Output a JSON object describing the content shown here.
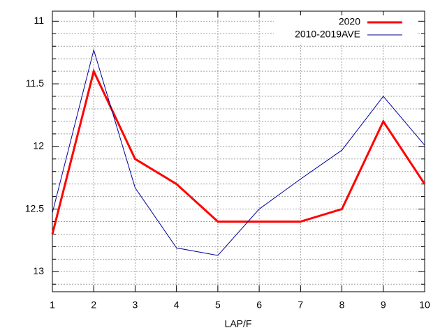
{
  "chart_data": {
    "type": "line",
    "x_label": "LAP/F",
    "x": [
      1,
      2,
      3,
      4,
      5,
      6,
      7,
      8,
      9,
      10
    ],
    "series": [
      {
        "name": "2020",
        "color": "#ff0000",
        "width": 3,
        "values": [
          12.7,
          11.4,
          12.1,
          12.3,
          12.6,
          12.6,
          12.6,
          12.5,
          11.8,
          12.3
        ]
      },
      {
        "name": "2010-2019AVE",
        "color": "#0000a0",
        "width": 1,
        "values": [
          12.53,
          11.23,
          12.33,
          12.81,
          12.87,
          12.5,
          12.26,
          12.03,
          11.6,
          11.99
        ]
      }
    ],
    "xlim": [
      1,
      10
    ],
    "xticks": [
      1,
      2,
      3,
      4,
      5,
      6,
      7,
      8,
      9,
      10
    ],
    "ylim": [
      13.16,
      10.92
    ],
    "yticks": [
      11,
      11.5,
      12,
      12.5,
      13
    ],
    "yminorticks": [
      11.1,
      11.2,
      11.3,
      11.4,
      11.6,
      11.7,
      11.8,
      11.9,
      12.1,
      12.2,
      12.3,
      12.4,
      12.6,
      12.7,
      12.8,
      12.9,
      13.1
    ],
    "grid": true,
    "legend": "top-right"
  }
}
